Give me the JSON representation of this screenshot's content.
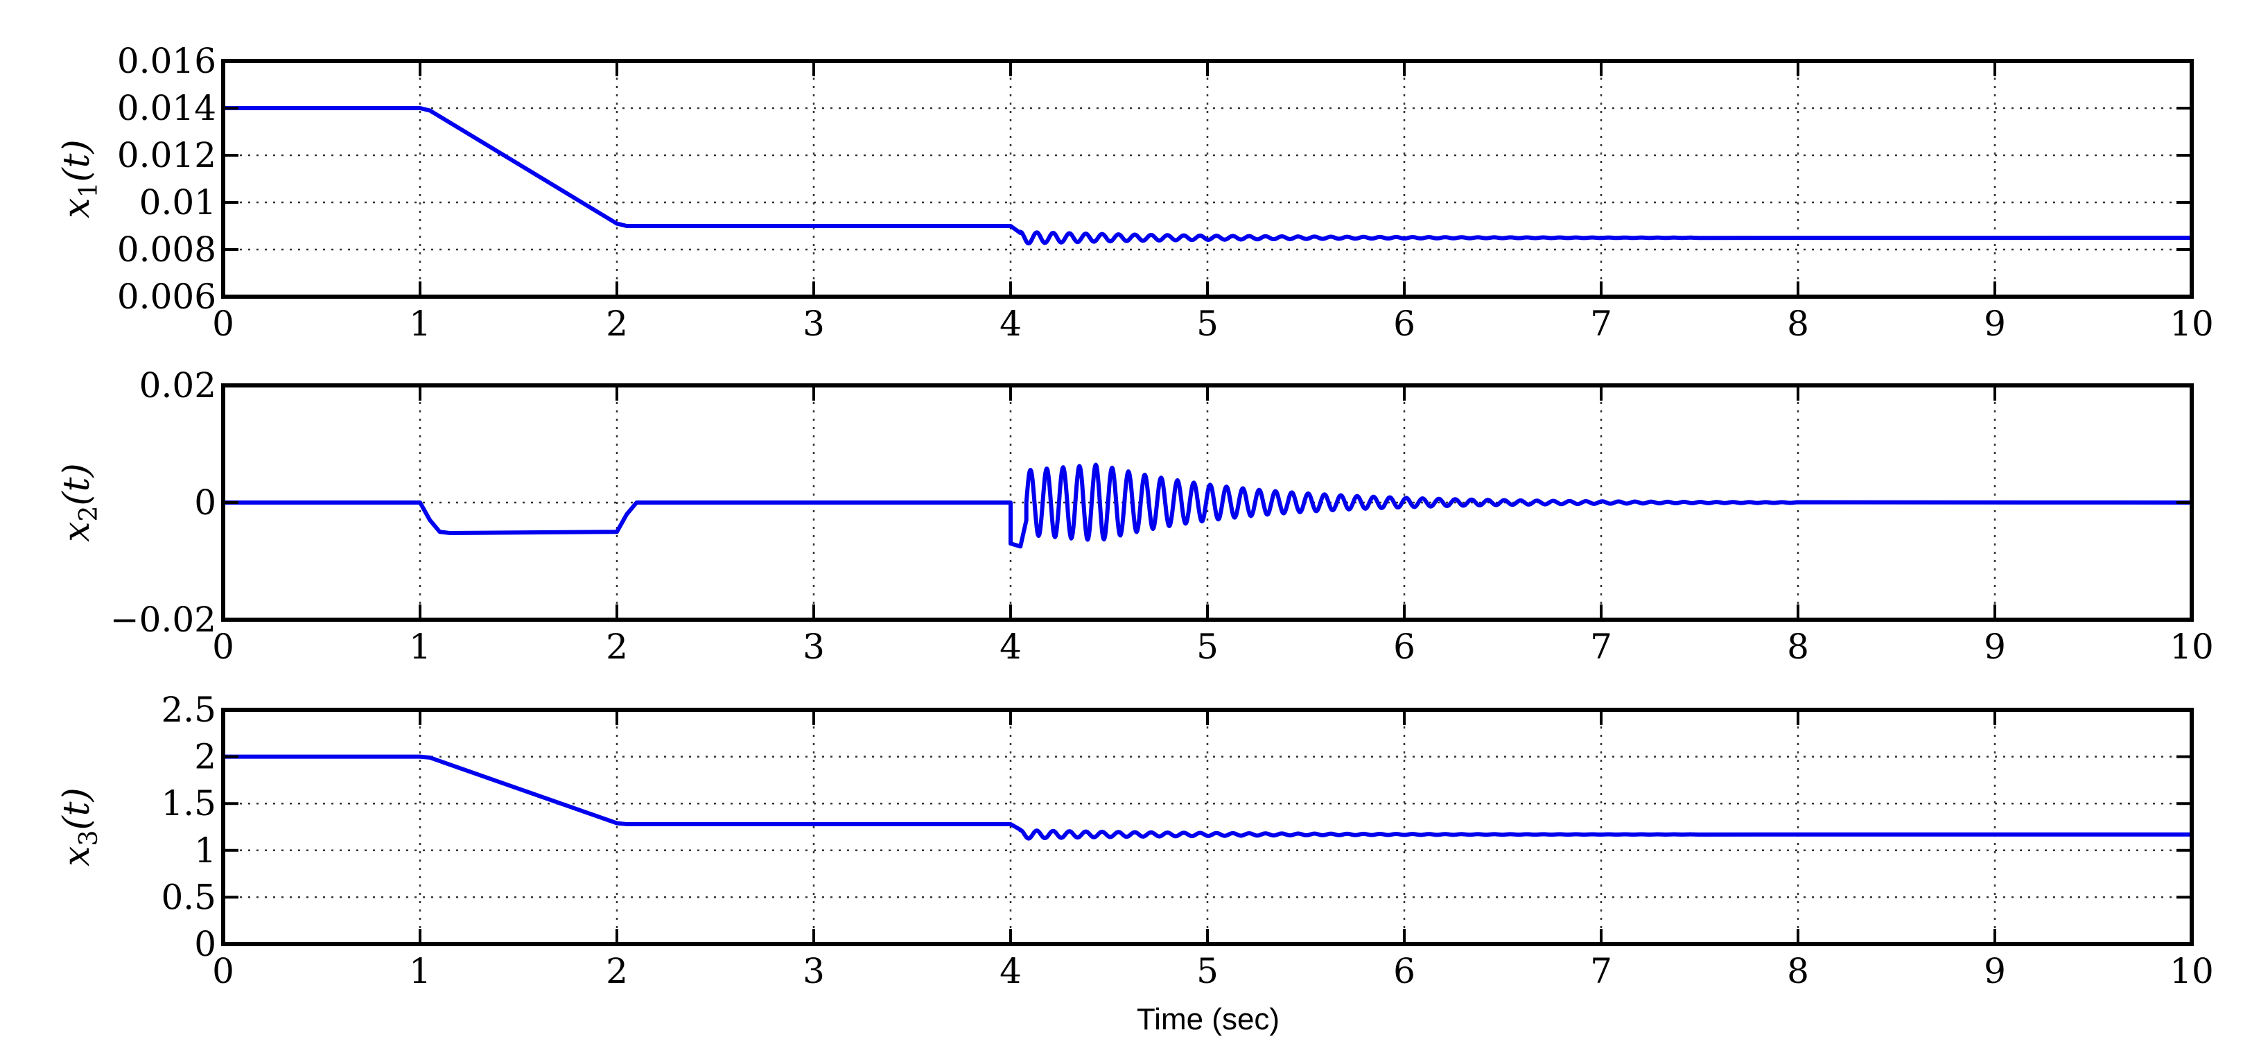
{
  "chart_data": [
    {
      "type": "line",
      "ylabel": {
        "base": "x",
        "sub": "1",
        "arg": "(t)"
      },
      "xlim": [
        0,
        10
      ],
      "ylim": [
        0.006,
        0.016
      ],
      "xticks": [
        0,
        1,
        2,
        3,
        4,
        5,
        6,
        7,
        8,
        9,
        10
      ],
      "xtick_labels": [
        "0",
        "1",
        "2",
        "3",
        "4",
        "5",
        "6",
        "7",
        "8",
        "9",
        "10"
      ],
      "yticks": [
        0.006,
        0.008,
        0.01,
        0.012,
        0.014,
        0.016
      ],
      "ytick_labels": [
        "0.006",
        "0.008",
        "0.01",
        "0.012",
        "0.014",
        "0.016"
      ],
      "grid": true,
      "series": [
        {
          "color": "#0000ee",
          "x": [
            0,
            1.0,
            1.05,
            2.0,
            2.05,
            4.0,
            4.05,
            4.1,
            10
          ],
          "y": [
            0.014,
            0.014,
            0.0139,
            0.0091,
            0.009,
            0.009,
            0.0087,
            0.0085,
            0.0085
          ],
          "oscillation": {
            "start": 4.05,
            "end": 7.5,
            "period": 0.083,
            "amplitude": 0.00025,
            "decay": 1.1
          }
        }
      ]
    },
    {
      "type": "line",
      "ylabel": {
        "base": "x",
        "sub": "2",
        "arg": "(t)"
      },
      "xlim": [
        0,
        10
      ],
      "ylim": [
        -0.02,
        0.02
      ],
      "xticks": [
        0,
        1,
        2,
        3,
        4,
        5,
        6,
        7,
        8,
        9,
        10
      ],
      "xtick_labels": [
        "0",
        "1",
        "2",
        "3",
        "4",
        "5",
        "6",
        "7",
        "8",
        "9",
        "10"
      ],
      "yticks": [
        -0.02,
        0,
        0.02
      ],
      "ytick_labels": [
        "−0.02",
        "0",
        "0.02"
      ],
      "grid": true,
      "series": [
        {
          "color": "#0000ee",
          "x": [
            0,
            1.0,
            1.05,
            1.1,
            1.15,
            2.0,
            2.05,
            2.1,
            4.0,
            4.0,
            4.05,
            4.08
          ],
          "y": [
            0,
            0,
            -0.003,
            -0.005,
            -0.0052,
            -0.005,
            -0.002,
            0,
            0,
            -0.007,
            -0.0075,
            -0.003
          ],
          "oscillation": {
            "start": 4.08,
            "end": 8.0,
            "period": 0.083,
            "amplitude": 0.0065,
            "decay": 1.35,
            "peak": 4.45,
            "end_value": 0
          }
        }
      ]
    },
    {
      "type": "line",
      "ylabel": {
        "base": "x",
        "sub": "3",
        "arg": "(t)"
      },
      "xlabel": "Time (sec)",
      "xlim": [
        0,
        10
      ],
      "ylim": [
        0,
        2.5
      ],
      "xticks": [
        0,
        1,
        2,
        3,
        4,
        5,
        6,
        7,
        8,
        9,
        10
      ],
      "xtick_labels": [
        "0",
        "1",
        "2",
        "3",
        "4",
        "5",
        "6",
        "7",
        "8",
        "9",
        "10"
      ],
      "yticks": [
        0,
        0.5,
        1,
        1.5,
        2,
        2.5
      ],
      "ytick_labels": [
        "0",
        "0.5",
        "1",
        "1.5",
        "2",
        "2.5"
      ],
      "grid": true,
      "series": [
        {
          "color": "#0000ee",
          "x": [
            0,
            1.0,
            1.05,
            2.0,
            2.05,
            4.0,
            4.05,
            4.1,
            10
          ],
          "y": [
            2.0,
            2.0,
            1.99,
            1.29,
            1.28,
            1.28,
            1.22,
            1.17,
            1.17
          ],
          "oscillation": {
            "start": 4.05,
            "end": 7.5,
            "period": 0.083,
            "amplitude": 0.045,
            "decay": 1.1
          }
        }
      ]
    }
  ]
}
